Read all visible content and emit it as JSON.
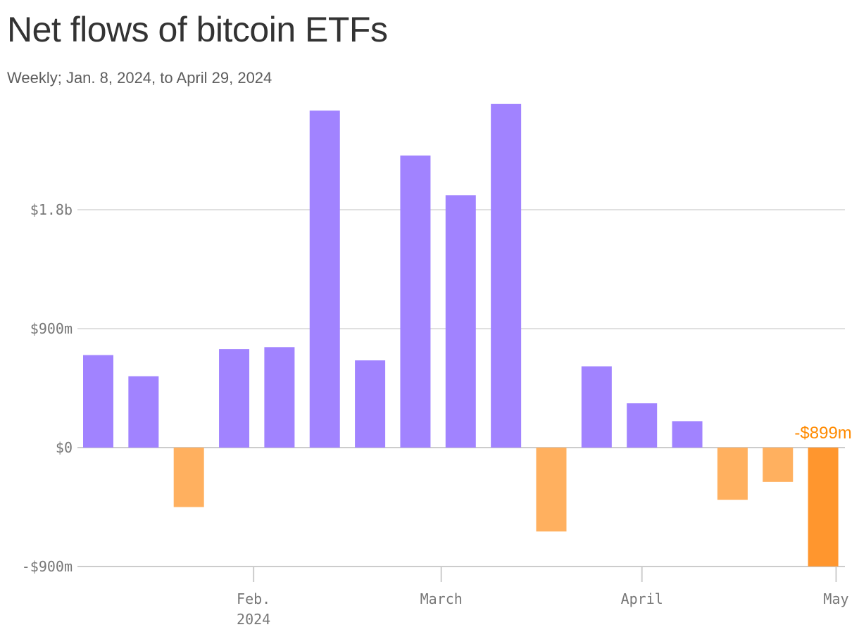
{
  "title": "Net flows of bitcoin ETFs",
  "subtitle": "Weekly; Jan. 8, 2024, to April 29, 2024",
  "colors": {
    "positive": "#a183ff",
    "negative": "#ffb05f",
    "highlight": "#ff962e",
    "highlight_label": "#ff8a00",
    "grid": "#e0e0e0",
    "axis": "#cccccc"
  },
  "chart_data": {
    "type": "bar",
    "title": "Net flows of bitcoin ETFs",
    "subtitle": "Weekly; Jan. 8, 2024, to April 29, 2024",
    "x": [
      "2024-01-08",
      "2024-01-15",
      "2024-01-22",
      "2024-01-29",
      "2024-02-05",
      "2024-02-12",
      "2024-02-19",
      "2024-02-26",
      "2024-03-04",
      "2024-03-11",
      "2024-03-18",
      "2024-03-25",
      "2024-04-01",
      "2024-04-08",
      "2024-04-15",
      "2024-04-22",
      "2024-04-29"
    ],
    "values": [
      700,
      540,
      -450,
      745,
      760,
      2550,
      660,
      2210,
      1910,
      2600,
      -635,
      615,
      335,
      200,
      -395,
      -260,
      -899
    ],
    "value_unit": "millions of US dollars",
    "ylim": [
      -900,
      2650
    ],
    "y_ticks": [
      {
        "value": -900,
        "label": "-$900m"
      },
      {
        "value": 0,
        "label": "$0"
      },
      {
        "value": 900,
        "label": "$900m"
      },
      {
        "value": 1800,
        "label": "$1.8b"
      }
    ],
    "x_ticks": [
      {
        "date": "2024-02-01",
        "lines": [
          "Feb.",
          "2024"
        ]
      },
      {
        "date": "2024-03-01",
        "lines": [
          "March"
        ]
      },
      {
        "date": "2024-04-01",
        "lines": [
          "April"
        ]
      },
      {
        "date": "2024-05-01",
        "lines": [
          "May"
        ]
      }
    ],
    "highlight_index": 16,
    "annotation": {
      "index": 16,
      "label": "-$899m"
    },
    "grid": true
  }
}
